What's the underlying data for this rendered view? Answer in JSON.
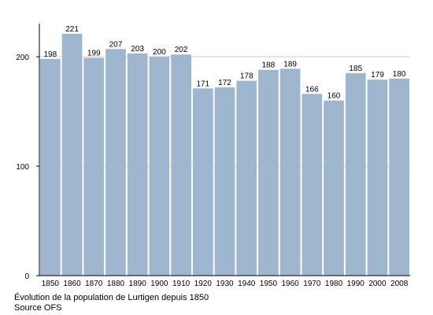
{
  "chart_data": {
    "type": "bar",
    "categories": [
      "1850",
      "1860",
      "1870",
      "1880",
      "1890",
      "1900",
      "1910",
      "1920",
      "1930",
      "1940",
      "1950",
      "1960",
      "1970",
      "1980",
      "1990",
      "2000",
      "2008"
    ],
    "values": [
      198,
      221,
      199,
      207,
      203,
      200,
      202,
      171,
      172,
      178,
      188,
      189,
      166,
      160,
      185,
      179,
      180
    ],
    "yticks": [
      0,
      100,
      200
    ],
    "ylim": [
      0,
      240
    ],
    "grid": true,
    "bar_color": "#9fb6cf",
    "caption_lines": [
      "Évolution de la population de Lurtigen depuis 1850",
      "Source OFS"
    ]
  }
}
